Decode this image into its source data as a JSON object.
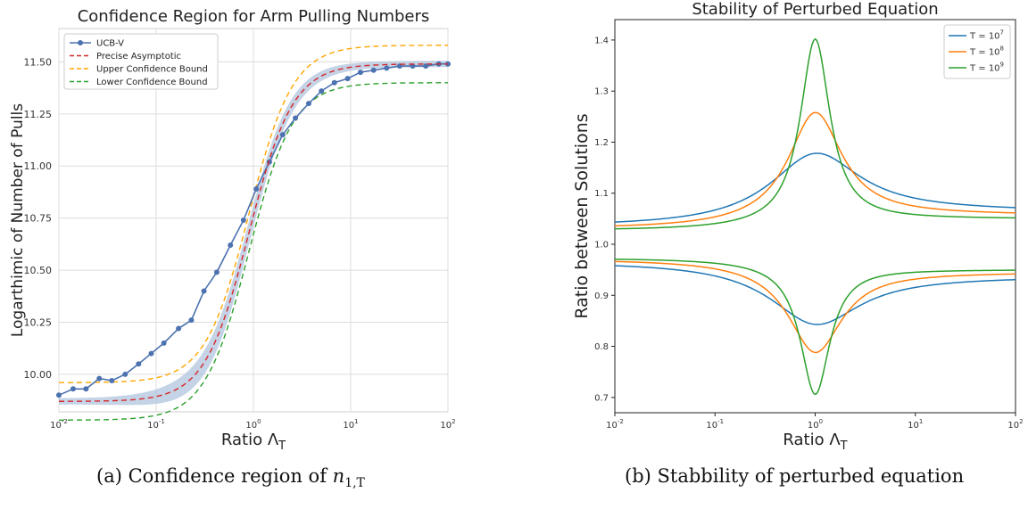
{
  "chart_data": [
    {
      "type": "line",
      "title": "Confidence Region for Arm Pulling Numbers",
      "xlabel": "Ratio Λ_T",
      "ylabel": "Logarithmic of Number of Pulls",
      "ylabel_text": "Logarthimic of Number of Pulls",
      "x_scale": "log",
      "xlim": [
        0.01,
        100
      ],
      "ylim": [
        9.82,
        11.66
      ],
      "x_ticks": [
        "10^-2",
        "10^-1",
        "10^0",
        "10^1",
        "10^2"
      ],
      "y_ticks": [
        "10.00",
        "10.25",
        "10.50",
        "10.75",
        "11.00",
        "11.25",
        "11.50"
      ],
      "grid": true,
      "legend_position": "top-left",
      "curve_params": {
        "A": 9.87,
        "B": 1.62,
        "k": 1.92,
        "x0": 0.9
      },
      "series": [
        {
          "name": "UCB-V",
          "style": "solid-markers",
          "color": "#4c72b0",
          "x": [
            0.01,
            0.014,
            0.019,
            0.026,
            0.035,
            0.048,
            0.066,
            0.089,
            0.12,
            0.17,
            0.23,
            0.31,
            0.42,
            0.58,
            0.79,
            1.07,
            1.46,
            2.0,
            2.7,
            3.7,
            5.0,
            6.8,
            9.3,
            12.6,
            17.2,
            23.4,
            31.9,
            43.4,
            59.1,
            80.4,
            100
          ],
          "y": [
            9.9,
            9.93,
            9.93,
            9.98,
            9.97,
            10.0,
            10.05,
            10.1,
            10.15,
            10.22,
            10.26,
            10.4,
            10.49,
            10.62,
            10.74,
            10.89,
            11.02,
            11.15,
            11.23,
            11.3,
            11.36,
            11.4,
            11.42,
            11.45,
            11.46,
            11.47,
            11.48,
            11.48,
            11.48,
            11.49,
            11.49
          ]
        },
        {
          "name": "Precise Asymptotic",
          "style": "dashed",
          "color": "#d62728"
        },
        {
          "name": "Upper Confidence Bound",
          "style": "dashed",
          "color": "#ffa500"
        },
        {
          "name": "Lower Confidence Bound",
          "style": "dashed",
          "color": "#2ca02c"
        }
      ],
      "band_color": "#b0c4de"
    },
    {
      "type": "line",
      "title": "Stability of Perturbed Equation",
      "xlabel": "Ratio Λ_T",
      "ylabel": "Ratio between Solutions",
      "x_scale": "log",
      "xlim": [
        0.01,
        100
      ],
      "ylim": [
        0.67,
        1.44
      ],
      "x_ticks": [
        "10^-2",
        "10^-1",
        "10^0",
        "10^1",
        "10^2"
      ],
      "y_ticks": [
        "0.7",
        "0.8",
        "0.9",
        "1.0",
        "1.1",
        "1.2",
        "1.3",
        "1.4"
      ],
      "grid": false,
      "legend_position": "top-right",
      "series": [
        {
          "name": "T = 10^7",
          "color": "#1f77b4",
          "upper": {
            "left": 1.034,
            "peak": 1.178,
            "right": 1.063,
            "width": 0.55
          },
          "lower": {
            "left": 0.966,
            "trough": 0.843,
            "right": 0.938,
            "width": 0.55
          }
        },
        {
          "name": "T = 10^8",
          "color": "#ff7f0e",
          "upper": {
            "left": 1.03,
            "peak": 1.258,
            "right": 1.056,
            "width": 0.33
          },
          "lower": {
            "left": 0.971,
            "trough": 0.788,
            "right": 0.946,
            "width": 0.33
          }
        },
        {
          "name": "T = 10^9",
          "color": "#2ca02c",
          "upper": {
            "left": 1.027,
            "peak": 1.402,
            "right": 1.049,
            "width": 0.18
          },
          "lower": {
            "left": 0.973,
            "trough": 0.706,
            "right": 0.951,
            "width": 0.18
          }
        }
      ]
    }
  ],
  "captions": {
    "left_prefix": "(a) Confidence region of ",
    "left_var": "n",
    "left_sub": "1,T",
    "right": "(b) Stabbility of perturbed equation"
  }
}
